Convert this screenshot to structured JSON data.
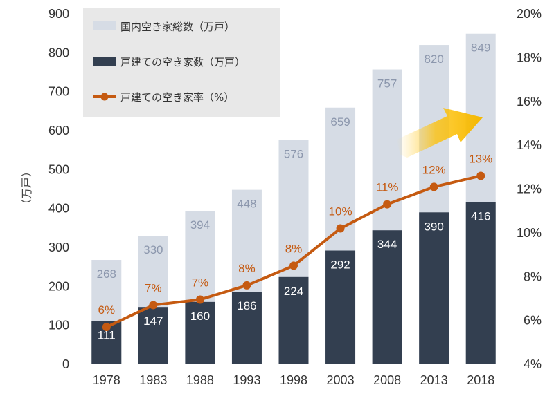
{
  "chart_data": {
    "type": "bar",
    "categories": [
      "1978",
      "1983",
      "1988",
      "1993",
      "1998",
      "2003",
      "2008",
      "2013",
      "2018"
    ],
    "series": [
      {
        "name": "国内空き家総数（万戸）",
        "kind": "bar",
        "axis": "left",
        "color": "#D6DCE5",
        "label_color": "#8C97AD",
        "values": [
          268,
          330,
          394,
          448,
          576,
          659,
          757,
          820,
          849
        ]
      },
      {
        "name": "戸建ての空き家数（万戸）",
        "kind": "bar",
        "axis": "left",
        "color": "#333F50",
        "label_color": "#FFFFFF",
        "values": [
          111,
          147,
          160,
          186,
          224,
          292,
          344,
          390,
          416
        ]
      },
      {
        "name": "戸建ての空き家率（%）",
        "kind": "line",
        "axis": "right",
        "color": "#C55A11",
        "label_color": "#C55A11",
        "values": [
          5.7,
          6.7,
          6.95,
          7.6,
          8.5,
          10.2,
          11.3,
          12.1,
          12.6
        ],
        "labels": [
          "6%",
          "7%",
          "7%",
          "8%",
          "8%",
          "10%",
          "11%",
          "12%",
          "13%"
        ]
      }
    ],
    "ylabel": "（万戸）",
    "ylim": [
      0,
      900
    ],
    "yticks": [
      "0",
      "100",
      "200",
      "300",
      "400",
      "500",
      "600",
      "700",
      "800",
      "900"
    ],
    "y2lim": [
      4,
      20
    ],
    "y2ticks": [
      "4%",
      "6%",
      "8%",
      "10%",
      "12%",
      "14%",
      "16%",
      "18%",
      "20%"
    ],
    "grid": false,
    "legend_position": "top-left",
    "annotation": "upward-trend-arrow"
  }
}
